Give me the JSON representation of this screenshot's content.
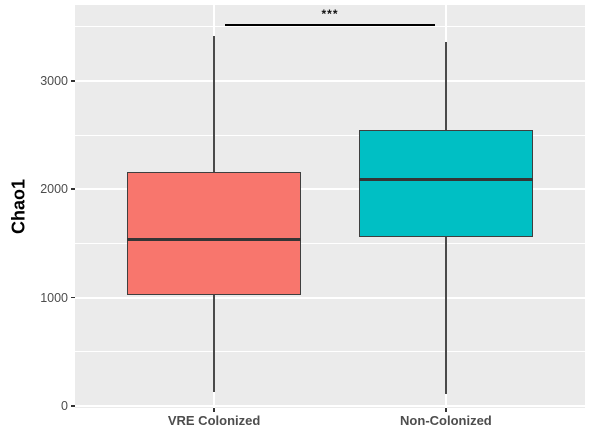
{
  "chart_data": {
    "type": "boxplot",
    "title": "",
    "xlabel": "",
    "ylabel": "Chao1",
    "categories": [
      "VRE Colonized",
      "Non-Colonized"
    ],
    "series": [
      {
        "name": "VRE Colonized",
        "fill": "#F8766D",
        "whisker_min": 130,
        "q1": 1020,
        "median": 1540,
        "q3": 2160,
        "whisker_max": 3410
      },
      {
        "name": "Non-Colonized",
        "fill": "#00BFC4",
        "whisker_min": 110,
        "q1": 1560,
        "median": 2090,
        "q3": 2550,
        "whisker_max": 3360
      }
    ],
    "yticks": [
      0,
      1000,
      2000,
      3000
    ],
    "yticks_minor": [
      500,
      1500,
      2500,
      3500
    ],
    "ylim": [
      -20,
      3700
    ],
    "significance": {
      "label": "***",
      "groups": [
        "VRE Colonized",
        "Non-Colonized"
      ],
      "y_value": 3520
    },
    "legend": "none",
    "grid": true,
    "colors": {
      "figure_bg": "#FFFFFF",
      "panel_bg": "#EBEBEB",
      "grid": "#FFFFFF",
      "box_border": "#3F3F3F",
      "median": "#353535",
      "whisker": "#4A4A4A",
      "tick_text": "#4D4D4D",
      "axis_title_text": "#000000",
      "sig_text": "#111111"
    }
  }
}
